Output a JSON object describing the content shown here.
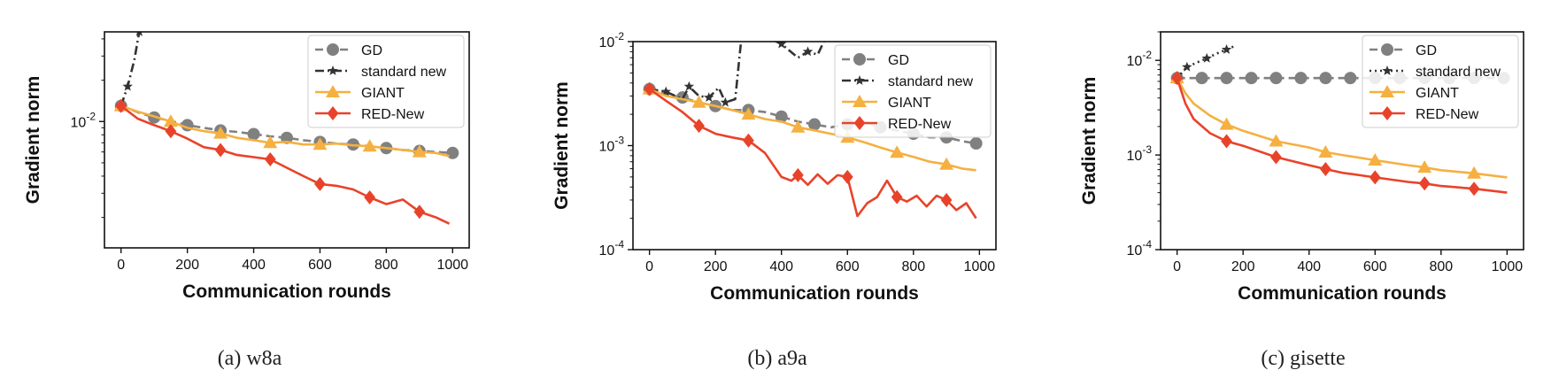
{
  "figure": {
    "captions": [
      "(a) w8a",
      "(b) a9a",
      "(c) gisette"
    ]
  },
  "colors": {
    "GD": "#808080",
    "standard new": "#333333",
    "GIANT": "#F5B041",
    "RED-New": "#E8432A"
  },
  "chart_data": [
    {
      "type": "line",
      "caption": "(a) w8a",
      "xlabel": "Communication rounds",
      "ylabel": "Gradient norm",
      "xlim": [
        -50,
        1050
      ],
      "ylim": [
        0.0012,
        0.045
      ],
      "yscale": "log",
      "xticks": [
        0,
        200,
        400,
        600,
        800,
        1000
      ],
      "xtick_labels": [
        "0",
        "200",
        "400",
        "600",
        "800",
        "1000"
      ],
      "yticks": [
        0.01
      ],
      "ytick_labels": [
        "10^-2"
      ],
      "legend_position": "top-right",
      "series": [
        {
          "name": "GD",
          "marker": "circle",
          "dash": "dashed",
          "x": [
            0,
            50,
            100,
            150,
            200,
            250,
            300,
            350,
            400,
            450,
            500,
            550,
            600,
            650,
            700,
            750,
            800,
            850,
            900,
            950,
            1000
          ],
          "y": [
            0.013,
            0.0117,
            0.0107,
            0.0101,
            0.0094,
            0.009,
            0.0086,
            0.0084,
            0.0081,
            0.0078,
            0.0076,
            0.0073,
            0.0071,
            0.0069,
            0.0068,
            0.0066,
            0.0064,
            0.0062,
            0.0061,
            0.006,
            0.0059
          ]
        },
        {
          "name": "standard new",
          "marker": "star",
          "dash": "dashdot",
          "x": [
            0,
            20,
            40,
            55,
            70
          ],
          "y": [
            0.013,
            0.018,
            0.028,
            0.045,
            0.07
          ]
        },
        {
          "name": "GIANT",
          "marker": "triangle",
          "dash": "solid",
          "x": [
            0,
            50,
            100,
            150,
            200,
            250,
            300,
            350,
            400,
            450,
            500,
            550,
            600,
            650,
            700,
            750,
            800,
            850,
            900,
            950,
            990
          ],
          "y": [
            0.013,
            0.0118,
            0.0109,
            0.01,
            0.009,
            0.0085,
            0.0082,
            0.0076,
            0.0073,
            0.007,
            0.0071,
            0.0068,
            0.0068,
            0.0069,
            0.0067,
            0.0066,
            0.0064,
            0.0062,
            0.006,
            0.0059,
            0.0056
          ]
        },
        {
          "name": "RED-New",
          "marker": "diamond",
          "dash": "solid",
          "x": [
            0,
            50,
            100,
            150,
            200,
            250,
            300,
            350,
            400,
            450,
            500,
            550,
            600,
            650,
            700,
            750,
            800,
            850,
            900,
            950,
            990
          ],
          "y": [
            0.013,
            0.0105,
            0.0094,
            0.0085,
            0.0075,
            0.0065,
            0.0062,
            0.0057,
            0.0055,
            0.0053,
            0.0046,
            0.004,
            0.0035,
            0.0034,
            0.0032,
            0.0028,
            0.0025,
            0.0027,
            0.0022,
            0.002,
            0.0018
          ]
        }
      ]
    },
    {
      "type": "line",
      "caption": "(b) a9a",
      "xlabel": "Communication rounds",
      "ylabel": "Gradient norm",
      "xlim": [
        -50,
        1050
      ],
      "ylim": [
        0.0001,
        0.01
      ],
      "yscale": "log",
      "xticks": [
        0,
        200,
        400,
        600,
        800,
        1000
      ],
      "xtick_labels": [
        "0",
        "200",
        "400",
        "600",
        "800",
        "1000"
      ],
      "yticks": [
        0.0001,
        0.001,
        0.01
      ],
      "ytick_labels": [
        "10^-4",
        "10^-3",
        "10^-2"
      ],
      "legend_position": "top-right",
      "series": [
        {
          "name": "GD",
          "marker": "circle",
          "dash": "dashed",
          "x": [
            0,
            50,
            100,
            150,
            200,
            250,
            300,
            350,
            400,
            450,
            500,
            550,
            600,
            650,
            700,
            750,
            800,
            850,
            900,
            950,
            990
          ],
          "y": [
            0.0035,
            0.0031,
            0.0029,
            0.0026,
            0.0024,
            0.0022,
            0.0022,
            0.0021,
            0.0019,
            0.0017,
            0.0016,
            0.0015,
            0.0016,
            0.0017,
            0.0015,
            0.0014,
            0.0013,
            0.0012,
            0.0012,
            0.0011,
            0.00105
          ]
        },
        {
          "name": "standard new",
          "marker": "star",
          "dash": "dashdot",
          "x": [
            0,
            50,
            100,
            120,
            150,
            180,
            210,
            230,
            260,
            280,
            300,
            330,
            370,
            400,
            450,
            480,
            510,
            540
          ],
          "y": [
            0.0035,
            0.0033,
            0.0028,
            0.0037,
            0.003,
            0.0029,
            0.0036,
            0.0026,
            0.0028,
            0.012,
            0.012,
            0.011,
            0.0105,
            0.0095,
            0.007,
            0.008,
            0.0075,
            0.012
          ]
        },
        {
          "name": "GIANT",
          "marker": "triangle",
          "dash": "solid",
          "x": [
            0,
            50,
            100,
            150,
            200,
            250,
            300,
            350,
            400,
            450,
            500,
            550,
            600,
            650,
            700,
            750,
            800,
            850,
            900,
            950,
            990
          ],
          "y": [
            0.0035,
            0.003,
            0.0028,
            0.0026,
            0.0024,
            0.0022,
            0.002,
            0.0018,
            0.0017,
            0.0015,
            0.0014,
            0.0013,
            0.0012,
            0.00108,
            0.00096,
            0.00086,
            0.00078,
            0.0007,
            0.00066,
            0.0006,
            0.00058
          ]
        },
        {
          "name": "RED-New",
          "marker": "diamond",
          "dash": "solid",
          "x": [
            0,
            50,
            100,
            150,
            200,
            250,
            300,
            350,
            400,
            430,
            450,
            480,
            510,
            540,
            570,
            600,
            630,
            660,
            690,
            720,
            750,
            780,
            810,
            840,
            870,
            900,
            930,
            960,
            990
          ],
          "y": [
            0.0035,
            0.0027,
            0.0021,
            0.00155,
            0.0013,
            0.0012,
            0.00112,
            0.00085,
            0.0005,
            0.00046,
            0.00052,
            0.00042,
            0.00053,
            0.00043,
            0.00052,
            0.0005,
            0.00021,
            0.00028,
            0.00032,
            0.00046,
            0.00032,
            0.00029,
            0.00033,
            0.00026,
            0.00033,
            0.0003,
            0.00024,
            0.00028,
            0.0002
          ]
        }
      ]
    },
    {
      "type": "line",
      "caption": "(c) gisette",
      "xlabel": "Communication rounds",
      "ylabel": "Gradient norm",
      "xlim": [
        -50,
        1050
      ],
      "ylim": [
        0.0001,
        0.02
      ],
      "yscale": "log",
      "xticks": [
        0,
        200,
        400,
        600,
        800,
        1000
      ],
      "xtick_labels": [
        "0",
        "200",
        "400",
        "600",
        "800",
        "1000"
      ],
      "yticks": [
        0.0001,
        0.001,
        0.01
      ],
      "ytick_labels": [
        "10^-4",
        "10^-3",
        "10^-2"
      ],
      "legend_position": "top-right",
      "series": [
        {
          "name": "GD",
          "marker": "circle",
          "dash": "dashed",
          "x": [
            0,
            75,
            150,
            225,
            300,
            375,
            450,
            525,
            600,
            675,
            750,
            825,
            900,
            990
          ],
          "y": [
            0.0065,
            0.0065,
            0.0065,
            0.0065,
            0.0065,
            0.0065,
            0.0065,
            0.0065,
            0.0065,
            0.0065,
            0.0065,
            0.0065,
            0.0065,
            0.0065
          ]
        },
        {
          "name": "standard new",
          "marker": "star",
          "dash": "dotted",
          "x": [
            0,
            30,
            60,
            90,
            120,
            150,
            175
          ],
          "y": [
            0.0065,
            0.0085,
            0.0095,
            0.0105,
            0.0118,
            0.013,
            0.0142
          ]
        },
        {
          "name": "GIANT",
          "marker": "triangle",
          "dash": "solid",
          "x": [
            0,
            25,
            50,
            100,
            150,
            200,
            300,
            400,
            450,
            500,
            600,
            700,
            750,
            800,
            900,
            1000
          ],
          "y": [
            0.0065,
            0.0045,
            0.0035,
            0.0026,
            0.0021,
            0.0018,
            0.0014,
            0.0012,
            0.00107,
            0.001,
            0.00088,
            0.00078,
            0.00074,
            0.00069,
            0.00064,
            0.00058
          ]
        },
        {
          "name": "RED-New",
          "marker": "diamond",
          "dash": "solid",
          "x": [
            0,
            25,
            50,
            100,
            150,
            200,
            300,
            400,
            450,
            500,
            600,
            700,
            750,
            800,
            900,
            1000
          ],
          "y": [
            0.0065,
            0.0035,
            0.0024,
            0.0017,
            0.0014,
            0.00125,
            0.00095,
            0.00078,
            0.00071,
            0.00065,
            0.00058,
            0.00052,
            0.0005,
            0.00047,
            0.00044,
            0.0004
          ]
        }
      ]
    }
  ]
}
